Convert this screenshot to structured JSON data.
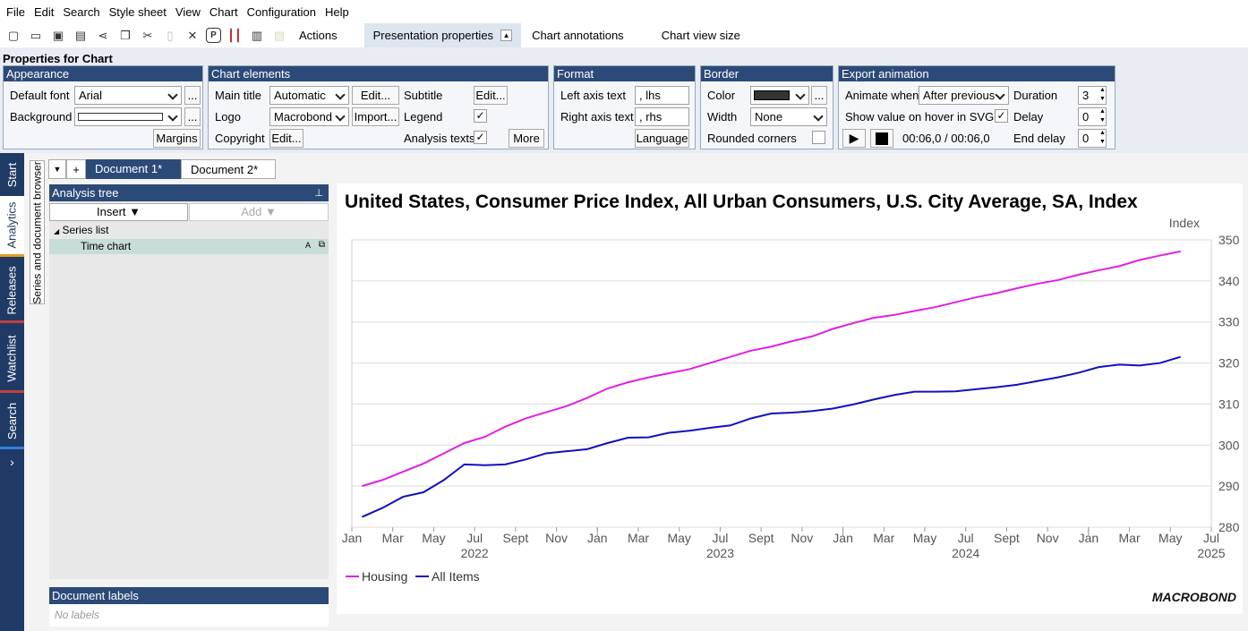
{
  "menu": [
    "File",
    "Edit",
    "Search",
    "Style sheet",
    "View",
    "Chart",
    "Configuration",
    "Help"
  ],
  "toolbar": {
    "actions": "Actions",
    "presentation_properties": "Presentation properties",
    "chart_annotations": "Chart annotations",
    "chart_view_size": "Chart view size"
  },
  "properties_title": "Properties for Chart",
  "appearance": {
    "header": "Appearance",
    "default_font_label": "Default font",
    "default_font_value": "Arial",
    "background_label": "Background",
    "more": "...",
    "margins": "Margins"
  },
  "chart_elements": {
    "header": "Chart elements",
    "main_title_label": "Main title",
    "main_title_value": "Automatic",
    "edit": "Edit...",
    "logo_label": "Logo",
    "logo_value": "Macrobond",
    "import": "Import...",
    "copyright_label": "Copyright",
    "subtitle_label": "Subtitle",
    "legend_label": "Legend",
    "analysis_texts_label": "Analysis texts",
    "more": "More",
    "check": "✓"
  },
  "format": {
    "header": "Format",
    "left_axis_label": "Left axis text",
    "left_axis_value": ", lhs",
    "right_axis_label": "Right axis text",
    "right_axis_value": ", rhs",
    "language": "Language"
  },
  "border": {
    "header": "Border",
    "color_label": "Color",
    "width_label": "Width",
    "width_value": "None",
    "rounded_label": "Rounded corners",
    "color": "#333333"
  },
  "export": {
    "header": "Export animation",
    "animate_when_label": "Animate when",
    "animate_when_value": "After previous",
    "duration_label": "Duration",
    "duration_value": "3",
    "hover_label": "Show value on hover in SVG",
    "delay_label": "Delay",
    "delay_value": "0",
    "end_delay_label": "End delay",
    "end_delay_value": "0",
    "time": "00:06,0 / 00:06,0"
  },
  "rail": [
    "Start",
    "Analytics",
    "Releases",
    "Watchlist",
    "Search"
  ],
  "doc_browser": "Series and document browser",
  "doc_tabs": [
    "Document 1*",
    "Document 2*"
  ],
  "analysis_tree": {
    "header": "Analysis tree",
    "insert": "Insert",
    "add": "Add",
    "series_list": "Series list",
    "time_chart": "Time chart",
    "badge": "A"
  },
  "doc_labels": {
    "header": "Document labels",
    "empty": "No labels"
  },
  "chart_data": {
    "type": "line",
    "title": "United States, Consumer Price Index, All Urban Consumers, U.S. City Average, SA, Index",
    "ylabel": "Index",
    "ylim": [
      280,
      350
    ],
    "yticks": [
      280,
      290,
      300,
      310,
      320,
      330,
      340,
      350
    ],
    "x_month_labels": [
      "Jan",
      "Mar",
      "May",
      "Jul",
      "Sept",
      "Nov",
      "Jan",
      "Mar",
      "May",
      "Jul",
      "Sept",
      "Nov",
      "Jan",
      "Mar",
      "May",
      "Jul",
      "Sept",
      "Nov",
      "Jan",
      "Mar",
      "May",
      "Jul"
    ],
    "year_labels": [
      "2022",
      "2023",
      "2024",
      "2025"
    ],
    "logo": "MACROBOND",
    "series": [
      {
        "name": "Housing",
        "color": "#e020e0",
        "values": [
          290.0,
          291.5,
          293.5,
          295.5,
          298.0,
          300.5,
          302.0,
          304.5,
          306.5,
          308.0,
          309.5,
          311.5,
          313.8,
          315.3,
          316.5,
          317.5,
          318.5,
          320.0,
          321.5,
          323.0,
          324.0,
          325.3,
          326.5,
          328.3,
          329.7,
          331.0,
          331.7,
          332.7,
          333.6,
          334.8,
          336.0,
          337.0,
          338.2,
          339.3,
          340.2,
          341.5,
          342.6,
          343.6,
          345.1,
          346.2,
          347.2
        ]
      },
      {
        "name": "All Items",
        "color": "#1010c0",
        "values": [
          282.5,
          284.7,
          287.4,
          288.5,
          291.5,
          295.3,
          295.1,
          295.3,
          296.5,
          298.0,
          298.5,
          299.0,
          300.5,
          301.8,
          301.9,
          303.0,
          303.5,
          304.2,
          304.8,
          306.5,
          307.7,
          307.9,
          308.3,
          308.9,
          309.9,
          311.1,
          312.2,
          313.0,
          313.0,
          313.1,
          313.6,
          314.1,
          314.7,
          315.6,
          316.5,
          317.6,
          319.0,
          319.6,
          319.4,
          320.0,
          321.5
        ]
      }
    ]
  }
}
